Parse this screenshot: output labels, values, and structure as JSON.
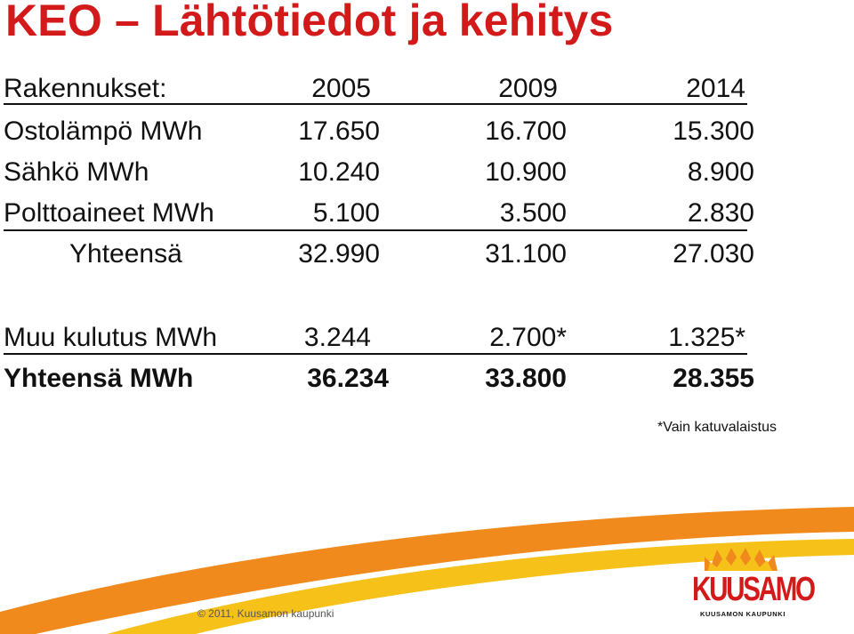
{
  "title": "KEO – Lähtötiedot ja kehitys",
  "header": {
    "label": "Rakennukset:",
    "years": [
      "2005",
      "2009",
      "2014"
    ]
  },
  "rows": [
    {
      "label": "Ostolämpö MWh",
      "values": [
        "17.650",
        "16.700",
        "15.300"
      ]
    },
    {
      "label": "Sähkö MWh",
      "values": [
        "10.240",
        "10.900",
        "8.900"
      ]
    },
    {
      "label": "Polttoaineet MWh",
      "values": [
        "5.100",
        "3.500",
        "2.830"
      ]
    }
  ],
  "subtotal": {
    "label": "Yhteensä",
    "values": [
      "32.990",
      "31.100",
      "27.030"
    ]
  },
  "other": {
    "label": "Muu kulutus MWh",
    "values": [
      "3.244",
      "2.700*",
      "1.325*"
    ]
  },
  "total": {
    "label": "Yhteensä MWh",
    "values": [
      "36.234",
      "33.800",
      "28.355"
    ]
  },
  "footnote": "*Vain katuvalaistus",
  "footer": "© 2011, Kuusamon kaupunki",
  "logo": {
    "word": "KUUSAMO",
    "subtitle": "KUUSAMON KAUPUNKI"
  },
  "colors": {
    "accent": "#d31a1a",
    "swoosh_orange": "#f08a1c",
    "swoosh_yellow": "#f6c21a"
  }
}
